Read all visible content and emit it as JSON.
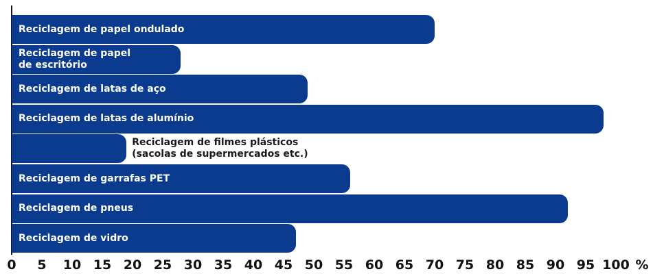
{
  "chart_data": {
    "type": "hbar",
    "categories": [
      "Reciclagem de papel ondulado",
      "Reciclagem de papel\nde escritório",
      "Reciclagem de latas de aço",
      "Reciclagem de latas de alumínio",
      "Reciclagem de filmes plásticos\n(sacolas de supermercados etc.)",
      "Reciclagem de garrafas PET",
      "Reciclagem de pneus",
      "Reciclagem de vidro"
    ],
    "values": [
      70,
      28,
      49,
      98,
      19,
      56,
      92,
      47
    ],
    "color": "#0b3b8f",
    "xlim": [
      0,
      100
    ],
    "xticks": [
      0,
      5,
      10,
      15,
      20,
      25,
      30,
      35,
      40,
      45,
      50,
      55,
      60,
      65,
      70,
      75,
      80,
      85,
      90,
      95,
      100
    ],
    "x_unit": "%"
  }
}
